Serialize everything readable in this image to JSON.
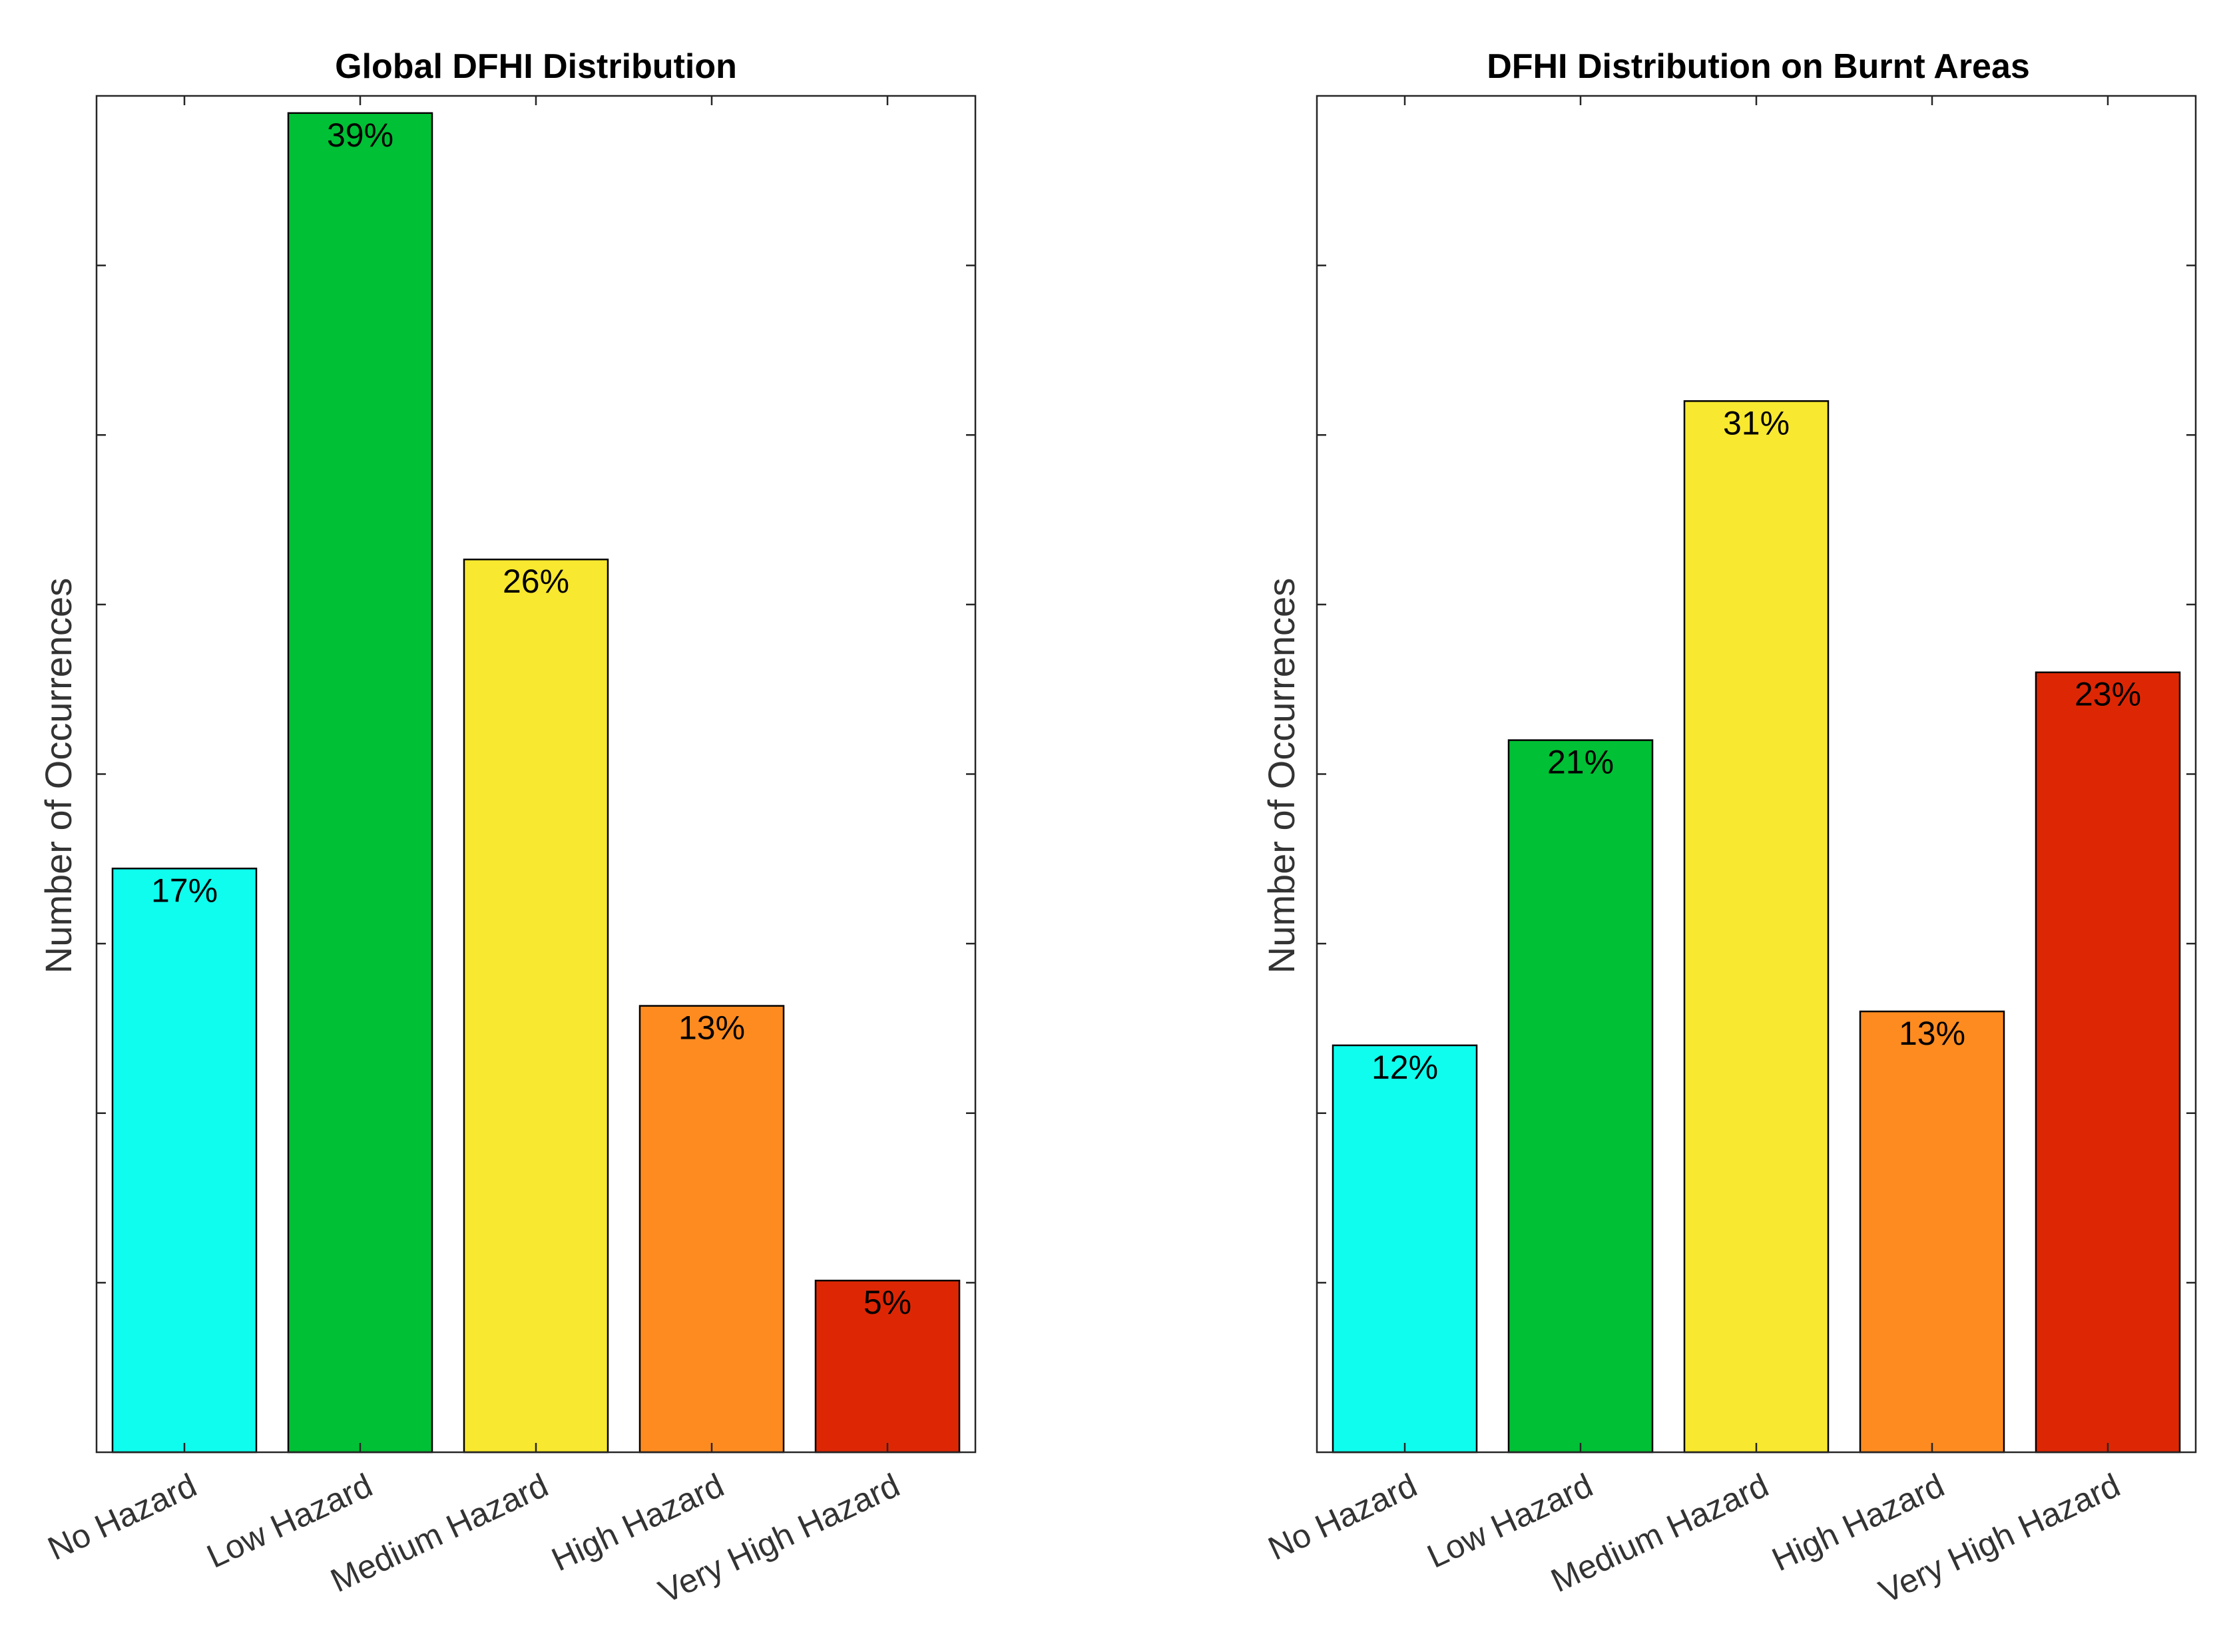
{
  "chart_data": [
    {
      "type": "bar",
      "title": "Global DFHI Distribution",
      "xlabel": "",
      "ylabel": "Number of Occurrences",
      "categories": [
        "No Hazard",
        "Low Hazard",
        "Medium Hazard",
        "High Hazard",
        "Very High Hazard"
      ],
      "values": [
        17,
        39,
        26,
        13,
        5
      ],
      "data_labels": [
        "17%",
        "39%",
        "26%",
        "13%",
        "5%"
      ],
      "colors": [
        "#0ffdee",
        "#00c035",
        "#f8e82f",
        "#fd8b20",
        "#dd2704"
      ],
      "ylim": [
        0,
        39.5
      ],
      "y_tick_count": 8,
      "y_tick_labels_shown": false,
      "grid": false
    },
    {
      "type": "bar",
      "title": "DFHI Distribution on Burnt Areas",
      "xlabel": "",
      "ylabel": "Number of Occurrences",
      "categories": [
        "No Hazard",
        "Low Hazard",
        "Medium Hazard",
        "High Hazard",
        "Very High Hazard"
      ],
      "values": [
        12,
        21,
        31,
        13,
        23
      ],
      "data_labels": [
        "12%",
        "21%",
        "31%",
        "13%",
        "23%"
      ],
      "colors": [
        "#0ffdee",
        "#00c035",
        "#f8e82f",
        "#fd8b20",
        "#dd2704"
      ],
      "ylim": [
        0,
        40
      ],
      "y_tick_count": 8,
      "y_tick_labels_shown": false,
      "grid": false
    }
  ]
}
